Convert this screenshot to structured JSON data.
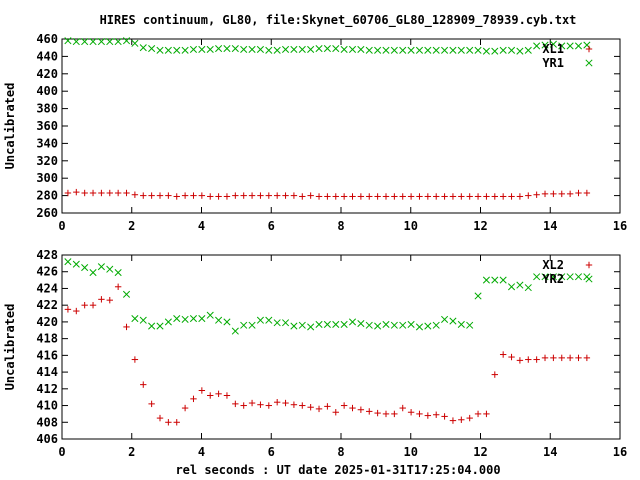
{
  "chart_title": "HIRES continuum, GL80, file:Skynet_60706_GL80_128909_78939.cyb.txt",
  "xlabel": "rel seconds : UT date 2025-01-31T17:25:04.000",
  "colors": {
    "plus": "#cc0000",
    "cross": "#00aa00",
    "axis": "#000000"
  },
  "chart_data": [
    {
      "type": "scatter",
      "ylabel": "Uncalibrated",
      "xlim": [
        0,
        16
      ],
      "ylim": [
        260,
        460
      ],
      "xticks": [
        0,
        2,
        4,
        6,
        8,
        10,
        12,
        14,
        16
      ],
      "yticks": [
        260,
        280,
        300,
        320,
        340,
        360,
        380,
        400,
        420,
        440,
        460
      ],
      "grid": false,
      "legend_position": "top-right",
      "series": [
        {
          "name": "XL1",
          "marker": "plus",
          "x": [
            0.17,
            0.41,
            0.65,
            0.89,
            1.13,
            1.37,
            1.61,
            1.85,
            2.09,
            2.33,
            2.57,
            2.81,
            3.05,
            3.29,
            3.53,
            3.77,
            4.01,
            4.25,
            4.49,
            4.73,
            4.97,
            5.21,
            5.45,
            5.69,
            5.93,
            6.17,
            6.41,
            6.65,
            6.89,
            7.13,
            7.37,
            7.61,
            7.85,
            8.09,
            8.33,
            8.57,
            8.81,
            9.05,
            9.29,
            9.53,
            9.77,
            10.01,
            10.25,
            10.49,
            10.73,
            10.97,
            11.21,
            11.45,
            11.69,
            11.93,
            12.17,
            12.41,
            12.65,
            12.89,
            13.13,
            13.37,
            13.61,
            13.85,
            14.09,
            14.33,
            14.57,
            14.81,
            15.05
          ],
          "y": [
            283,
            284,
            283,
            283,
            283,
            283,
            283,
            283,
            281,
            280,
            280,
            280,
            280,
            279,
            280,
            280,
            280,
            279,
            279,
            279,
            280,
            280,
            280,
            280,
            280,
            280,
            280,
            280,
            279,
            280,
            279,
            279,
            279,
            279,
            279,
            279,
            279,
            279,
            279,
            279,
            279,
            279,
            279,
            279,
            279,
            279,
            279,
            279,
            279,
            279,
            279,
            279,
            279,
            279,
            279,
            280,
            281,
            282,
            282,
            282,
            282,
            283,
            283
          ]
        },
        {
          "name": "YR1",
          "marker": "cross",
          "x": [
            0.17,
            0.41,
            0.65,
            0.89,
            1.13,
            1.37,
            1.61,
            1.85,
            2.09,
            2.33,
            2.57,
            2.81,
            3.05,
            3.29,
            3.53,
            3.77,
            4.01,
            4.25,
            4.49,
            4.73,
            4.97,
            5.21,
            5.45,
            5.69,
            5.93,
            6.17,
            6.41,
            6.65,
            6.89,
            7.13,
            7.37,
            7.61,
            7.85,
            8.09,
            8.33,
            8.57,
            8.81,
            9.05,
            9.29,
            9.53,
            9.77,
            10.01,
            10.25,
            10.49,
            10.73,
            10.97,
            11.21,
            11.45,
            11.69,
            11.93,
            12.17,
            12.41,
            12.65,
            12.89,
            13.13,
            13.37,
            13.61,
            13.85,
            14.09,
            14.33,
            14.57,
            14.81,
            15.05
          ],
          "y": [
            458,
            457,
            457,
            457,
            457,
            457,
            457,
            458,
            455,
            450,
            449,
            447,
            447,
            447,
            447,
            448,
            448,
            448,
            449,
            449,
            449,
            448,
            448,
            448,
            447,
            447,
            448,
            448,
            448,
            448,
            449,
            449,
            449,
            448,
            448,
            448,
            447,
            447,
            447,
            447,
            447,
            447,
            447,
            447,
            447,
            447,
            447,
            447,
            447,
            447,
            446,
            446,
            447,
            447,
            446,
            447,
            452,
            453,
            454,
            452,
            452,
            452,
            453
          ]
        }
      ]
    },
    {
      "type": "scatter",
      "ylabel": "Uncalibrated",
      "xlim": [
        0,
        16
      ],
      "ylim": [
        406,
        428
      ],
      "xticks": [
        0,
        2,
        4,
        6,
        8,
        10,
        12,
        14,
        16
      ],
      "yticks": [
        406,
        408,
        410,
        412,
        414,
        416,
        418,
        420,
        422,
        424,
        426,
        428
      ],
      "grid": false,
      "legend_position": "top-right",
      "series": [
        {
          "name": "XL2",
          "marker": "plus",
          "x": [
            0.17,
            0.41,
            0.65,
            0.89,
            1.13,
            1.37,
            1.61,
            1.85,
            2.09,
            2.33,
            2.57,
            2.81,
            3.05,
            3.29,
            3.53,
            3.77,
            4.01,
            4.25,
            4.49,
            4.73,
            4.97,
            5.21,
            5.45,
            5.69,
            5.93,
            6.17,
            6.41,
            6.65,
            6.89,
            7.13,
            7.37,
            7.61,
            7.85,
            8.09,
            8.33,
            8.57,
            8.81,
            9.05,
            9.29,
            9.53,
            9.77,
            10.01,
            10.25,
            10.49,
            10.73,
            10.97,
            11.21,
            11.45,
            11.69,
            11.93,
            12.17,
            12.41,
            12.65,
            12.89,
            13.13,
            13.37,
            13.61,
            13.85,
            14.09,
            14.33,
            14.57,
            14.81,
            15.05
          ],
          "y": [
            421.5,
            421.3,
            422.0,
            422.0,
            422.7,
            422.6,
            424.2,
            419.4,
            415.5,
            412.5,
            410.2,
            408.5,
            408.0,
            408.0,
            409.7,
            410.8,
            411.8,
            411.2,
            411.4,
            411.2,
            410.2,
            410.0,
            410.3,
            410.1,
            410.0,
            410.4,
            410.3,
            410.1,
            410.0,
            409.8,
            409.6,
            409.9,
            409.2,
            410.0,
            409.7,
            409.5,
            409.3,
            409.1,
            409.0,
            409.0,
            409.7,
            409.2,
            409.0,
            408.8,
            408.9,
            408.7,
            408.2,
            408.3,
            408.5,
            409.0,
            409.0,
            413.7,
            416.1,
            415.8,
            415.4,
            415.5,
            415.5,
            415.7,
            415.7,
            415.7,
            415.7,
            415.7,
            415.7
          ]
        },
        {
          "name": "YR2",
          "marker": "cross",
          "x": [
            0.17,
            0.41,
            0.65,
            0.89,
            1.13,
            1.37,
            1.61,
            1.85,
            2.09,
            2.33,
            2.57,
            2.81,
            3.05,
            3.29,
            3.53,
            3.77,
            4.01,
            4.25,
            4.49,
            4.73,
            4.97,
            5.21,
            5.45,
            5.69,
            5.93,
            6.17,
            6.41,
            6.65,
            6.89,
            7.13,
            7.37,
            7.61,
            7.85,
            8.09,
            8.33,
            8.57,
            8.81,
            9.05,
            9.29,
            9.53,
            9.77,
            10.01,
            10.25,
            10.49,
            10.73,
            10.97,
            11.21,
            11.45,
            11.69,
            11.93,
            12.17,
            12.41,
            12.65,
            12.89,
            13.13,
            13.37,
            13.61,
            13.85,
            14.09,
            14.33,
            14.57,
            14.81,
            15.05
          ],
          "y": [
            427.2,
            426.9,
            426.5,
            425.9,
            426.6,
            426.3,
            425.9,
            423.3,
            420.4,
            420.2,
            419.5,
            419.5,
            420.0,
            420.4,
            420.3,
            420.4,
            420.4,
            420.8,
            420.2,
            420.0,
            418.9,
            419.6,
            419.6,
            420.2,
            420.2,
            419.9,
            419.9,
            419.5,
            419.6,
            419.4,
            419.7,
            419.7,
            419.7,
            419.7,
            420.0,
            419.8,
            419.6,
            419.5,
            419.7,
            419.6,
            419.6,
            419.7,
            419.4,
            419.5,
            419.6,
            420.3,
            420.1,
            419.7,
            419.6,
            423.1,
            425.0,
            425.0,
            425.0,
            424.2,
            424.4,
            424.1,
            425.4,
            425.4,
            425.4,
            425.4,
            425.4,
            425.4,
            425.4
          ]
        }
      ]
    }
  ]
}
